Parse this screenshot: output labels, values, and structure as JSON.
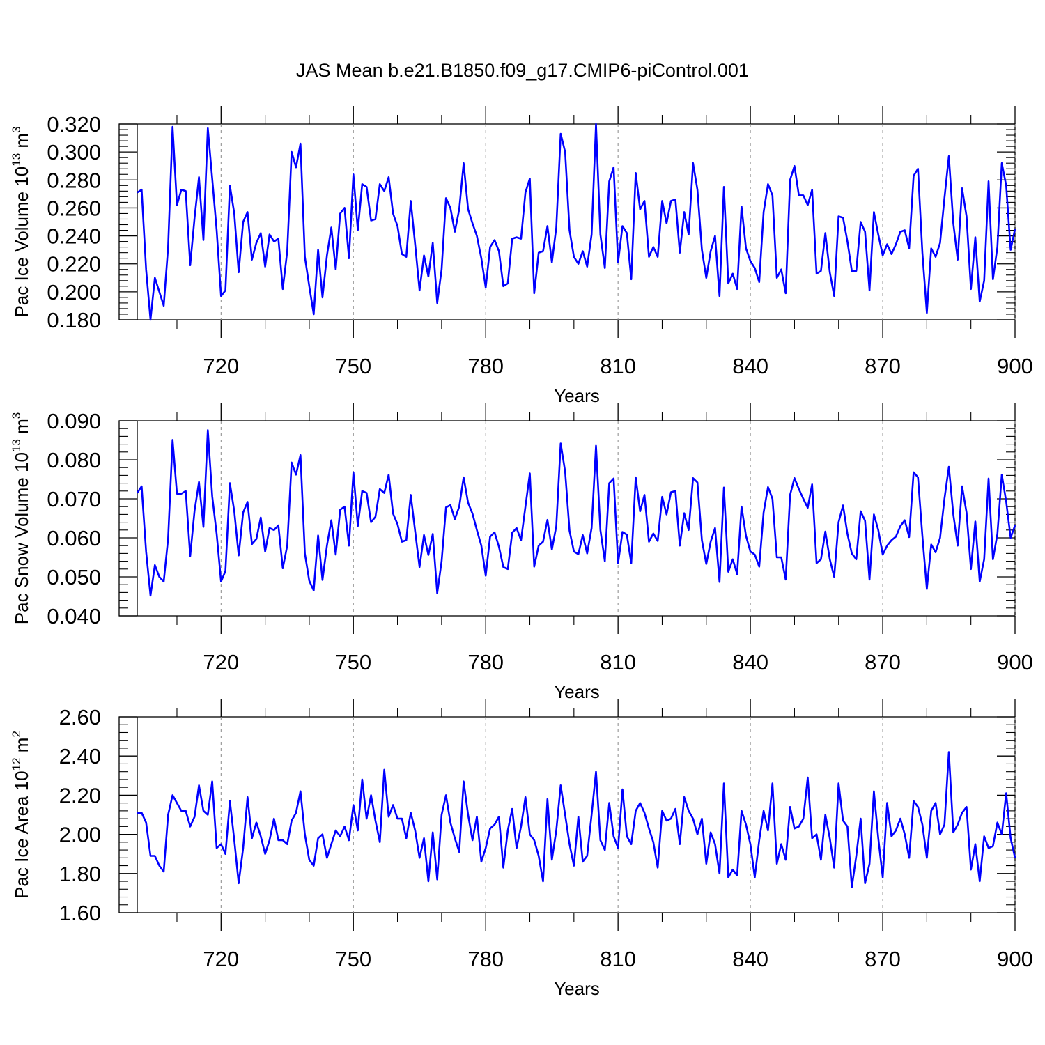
{
  "title": "JAS Mean b.e21.B1850.f09_g17.CMIP6-piControl.001",
  "colors": {
    "line": "#0000ff",
    "axis": "#000000",
    "grid": "#888888"
  },
  "chart_data": [
    {
      "type": "line",
      "ylabel_main": "Pac Ice Volume 10",
      "ylabel_sup": "13",
      "ylabel_unit": "m",
      "ylabel_unit_sup": "3",
      "xlabel": "Years",
      "xlim": [
        701,
        900
      ],
      "ylim": [
        0.18,
        0.32
      ],
      "xticks": [
        720,
        750,
        780,
        810,
        840,
        870,
        900
      ],
      "yticks": [
        "0.180",
        "0.200",
        "0.220",
        "0.240",
        "0.260",
        "0.280",
        "0.300",
        "0.320"
      ],
      "x_start": 701,
      "values": [
        0.271,
        0.273,
        0.216,
        0.18,
        0.21,
        0.2,
        0.19,
        0.232,
        0.318,
        0.262,
        0.273,
        0.272,
        0.219,
        0.253,
        0.282,
        0.237,
        0.317,
        0.281,
        0.244,
        0.197,
        0.201,
        0.276,
        0.256,
        0.214,
        0.25,
        0.257,
        0.223,
        0.235,
        0.242,
        0.218,
        0.241,
        0.236,
        0.238,
        0.202,
        0.229,
        0.3,
        0.289,
        0.306,
        0.225,
        0.204,
        0.184,
        0.23,
        0.196,
        0.226,
        0.246,
        0.216,
        0.256,
        0.26,
        0.224,
        0.284,
        0.244,
        0.277,
        0.275,
        0.251,
        0.252,
        0.277,
        0.272,
        0.282,
        0.256,
        0.247,
        0.227,
        0.225,
        0.265,
        0.234,
        0.201,
        0.226,
        0.211,
        0.235,
        0.192,
        0.216,
        0.267,
        0.26,
        0.243,
        0.259,
        0.292,
        0.259,
        0.249,
        0.24,
        0.224,
        0.203,
        0.232,
        0.237,
        0.229,
        0.204,
        0.206,
        0.238,
        0.239,
        0.238,
        0.271,
        0.281,
        0.199,
        0.228,
        0.229,
        0.247,
        0.221,
        0.246,
        0.313,
        0.3,
        0.244,
        0.225,
        0.22,
        0.229,
        0.218,
        0.241,
        0.32,
        0.241,
        0.217,
        0.279,
        0.289,
        0.221,
        0.247,
        0.242,
        0.209,
        0.285,
        0.259,
        0.265,
        0.225,
        0.232,
        0.225,
        0.265,
        0.249,
        0.265,
        0.266,
        0.228,
        0.257,
        0.241,
        0.292,
        0.273,
        0.23,
        0.21,
        0.229,
        0.24,
        0.197,
        0.275,
        0.206,
        0.213,
        0.202,
        0.261,
        0.231,
        0.222,
        0.217,
        0.207,
        0.257,
        0.277,
        0.269,
        0.21,
        0.216,
        0.199,
        0.28,
        0.29,
        0.269,
        0.269,
        0.262,
        0.273,
        0.213,
        0.215,
        0.242,
        0.214,
        0.197,
        0.254,
        0.253,
        0.236,
        0.215,
        0.215,
        0.25,
        0.243,
        0.201,
        0.257,
        0.241,
        0.226,
        0.234,
        0.227,
        0.234,
        0.243,
        0.244,
        0.231,
        0.283,
        0.288,
        0.228,
        0.185,
        0.231,
        0.225,
        0.235,
        0.267,
        0.297,
        0.249,
        0.223,
        0.274,
        0.254,
        0.202,
        0.239,
        0.193,
        0.208,
        0.279,
        0.209,
        0.232,
        0.292,
        0.276,
        0.23,
        0.245
      ]
    },
    {
      "type": "line",
      "ylabel_main": "Pac Snow Volume 10",
      "ylabel_sup": "13",
      "ylabel_unit": "m",
      "ylabel_unit_sup": "3",
      "xlabel": "Years",
      "xlim": [
        701,
        900
      ],
      "ylim": [
        0.04,
        0.09
      ],
      "xticks": [
        720,
        750,
        780,
        810,
        840,
        870,
        900
      ],
      "yticks": [
        "0.040",
        "0.050",
        "0.060",
        "0.070",
        "0.080",
        "0.090"
      ],
      "x_start": 701,
      "values": [
        0.0715,
        0.0732,
        0.0565,
        0.0452,
        0.053,
        0.05,
        0.0488,
        0.0598,
        0.0851,
        0.0713,
        0.0713,
        0.072,
        0.0553,
        0.067,
        0.0743,
        0.0628,
        0.0876,
        0.0707,
        0.061,
        0.0488,
        0.0515,
        0.074,
        0.0668,
        0.0555,
        0.0665,
        0.0692,
        0.0584,
        0.0597,
        0.0652,
        0.0565,
        0.0625,
        0.062,
        0.0632,
        0.0522,
        0.058,
        0.0793,
        0.0762,
        0.0812,
        0.056,
        0.049,
        0.0465,
        0.0606,
        0.0492,
        0.058,
        0.0645,
        0.0557,
        0.0672,
        0.068,
        0.058,
        0.0768,
        0.063,
        0.072,
        0.0715,
        0.064,
        0.0654,
        0.0725,
        0.0715,
        0.0762,
        0.0662,
        0.0635,
        0.059,
        0.0594,
        0.071,
        0.0617,
        0.0525,
        0.0607,
        0.0556,
        0.061,
        0.0458,
        0.054,
        0.0678,
        0.0684,
        0.0648,
        0.068,
        0.0755,
        0.069,
        0.0662,
        0.062,
        0.058,
        0.0503,
        0.0603,
        0.0614,
        0.0577,
        0.0525,
        0.052,
        0.0613,
        0.0625,
        0.0594,
        0.068,
        0.0765,
        0.0526,
        0.058,
        0.059,
        0.0646,
        0.057,
        0.063,
        0.0842,
        0.077,
        0.0618,
        0.0565,
        0.0558,
        0.0607,
        0.056,
        0.0625,
        0.0836,
        0.062,
        0.054,
        0.074,
        0.0752,
        0.0535,
        0.0615,
        0.0608,
        0.0535,
        0.0755,
        0.0668,
        0.071,
        0.059,
        0.0611,
        0.0592,
        0.0705,
        0.066,
        0.0717,
        0.072,
        0.058,
        0.0663,
        0.062,
        0.0753,
        0.0742,
        0.0594,
        0.0533,
        0.059,
        0.0625,
        0.0487,
        0.0729,
        0.0513,
        0.0545,
        0.0507,
        0.068,
        0.0605,
        0.0565,
        0.0557,
        0.0526,
        0.0665,
        0.073,
        0.07,
        0.055,
        0.055,
        0.0493,
        0.071,
        0.0753,
        0.0725,
        0.07,
        0.0677,
        0.0737,
        0.0535,
        0.0545,
        0.0616,
        0.0545,
        0.05,
        0.064,
        0.0683,
        0.061,
        0.056,
        0.0545,
        0.0668,
        0.0644,
        0.0493,
        0.066,
        0.062,
        0.0557,
        0.058,
        0.0594,
        0.0603,
        0.063,
        0.0645,
        0.0602,
        0.0768,
        0.0755,
        0.0605,
        0.0469,
        0.0583,
        0.0563,
        0.06,
        0.07,
        0.0782,
        0.066,
        0.058,
        0.0732,
        0.0665,
        0.052,
        0.0642,
        0.0488,
        0.0545,
        0.0752,
        0.0545,
        0.061,
        0.0762,
        0.0693,
        0.06,
        0.0632
      ]
    },
    {
      "type": "line",
      "ylabel_main": "Pac Ice Area 10",
      "ylabel_sup": "12",
      "ylabel_unit": "m",
      "ylabel_unit_sup": "2",
      "xlabel": "Years",
      "xlim": [
        701,
        900
      ],
      "ylim": [
        1.6,
        2.6
      ],
      "xticks": [
        720,
        750,
        780,
        810,
        840,
        870,
        900
      ],
      "yticks": [
        "1.60",
        "1.80",
        "2.00",
        "2.20",
        "2.40",
        "2.60"
      ],
      "x_start": 701,
      "values": [
        2.11,
        2.11,
        2.06,
        1.89,
        1.89,
        1.84,
        1.81,
        2.1,
        2.2,
        2.16,
        2.12,
        2.12,
        2.04,
        2.09,
        2.25,
        2.12,
        2.1,
        2.27,
        1.93,
        1.95,
        1.9,
        2.17,
        1.97,
        1.75,
        1.93,
        2.19,
        1.98,
        2.06,
        1.99,
        1.9,
        1.97,
        2.08,
        1.97,
        1.97,
        1.95,
        2.07,
        2.11,
        2.22,
        2.0,
        1.87,
        1.84,
        1.98,
        2.0,
        1.88,
        1.95,
        2.02,
        1.99,
        2.04,
        1.97,
        2.15,
        2.02,
        2.28,
        2.08,
        2.2,
        2.07,
        1.96,
        2.33,
        2.09,
        2.15,
        2.08,
        2.08,
        1.98,
        2.11,
        2.02,
        1.88,
        1.98,
        1.76,
        2.01,
        1.77,
        2.1,
        2.2,
        2.06,
        1.98,
        1.91,
        2.27,
        2.1,
        1.97,
        2.09,
        1.86,
        1.93,
        2.03,
        2.05,
        2.09,
        1.83,
        2.02,
        2.13,
        1.93,
        2.04,
        2.19,
        2.0,
        1.97,
        1.89,
        1.76,
        2.18,
        1.87,
        2.02,
        2.25,
        2.1,
        1.95,
        1.84,
        2.09,
        1.86,
        1.89,
        2.1,
        2.32,
        1.97,
        1.92,
        2.16,
        1.99,
        1.93,
        2.23,
        1.99,
        1.95,
        2.12,
        2.16,
        2.11,
        2.03,
        1.96,
        1.83,
        2.12,
        2.07,
        2.08,
        2.13,
        1.95,
        2.19,
        2.12,
        2.08,
        2.0,
        2.08,
        1.85,
        2.01,
        1.95,
        1.8,
        2.26,
        1.78,
        1.82,
        1.79,
        2.12,
        2.05,
        1.95,
        1.78,
        1.97,
        2.12,
        2.02,
        2.26,
        1.85,
        1.95,
        1.87,
        2.14,
        2.03,
        2.04,
        2.08,
        2.29,
        1.98,
        2.0,
        1.87,
        2.1,
        1.98,
        1.83,
        2.26,
        2.07,
        2.04,
        1.73,
        1.89,
        2.08,
        1.75,
        1.85,
        2.22,
        1.98,
        1.78,
        2.16,
        1.99,
        2.02,
        2.08,
        2.0,
        1.88,
        2.17,
        2.14,
        2.05,
        1.88,
        2.12,
        2.16,
        2.0,
        2.05,
        2.42,
        2.01,
        2.05,
        2.11,
        2.14,
        1.82,
        1.95,
        1.76,
        1.99,
        1.93,
        1.94,
        2.06,
        2.0,
        2.21,
        1.98,
        1.88
      ]
    }
  ]
}
